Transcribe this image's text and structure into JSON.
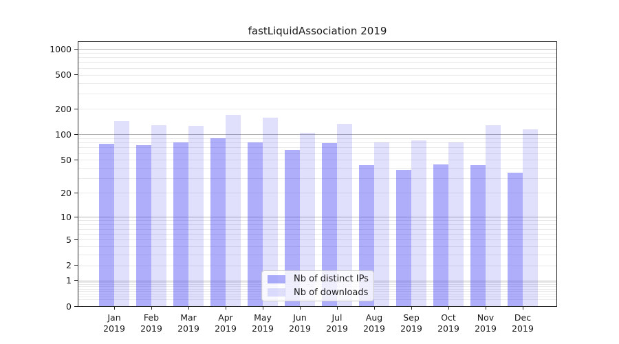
{
  "figure": {
    "title": "fastLiquidAssociation 2019"
  },
  "chart_data": {
    "type": "bar",
    "title": "fastLiquidAssociation 2019",
    "categories": [
      "Jan",
      "Feb",
      "Mar",
      "Apr",
      "May",
      "Jun",
      "Jul",
      "Aug",
      "Sep",
      "Oct",
      "Nov",
      "Dec"
    ],
    "category_year": "2019",
    "series": [
      {
        "name": "Nb of distinct IPs",
        "color": "rgba(62,62,244,0.42)",
        "values": [
          77,
          74,
          80,
          90,
          81,
          66,
          79,
          43,
          38,
          44,
          43,
          35
        ]
      },
      {
        "name": "Nb of downloads",
        "color": "rgba(62,62,244,0.16)",
        "values": [
          143,
          129,
          125,
          171,
          158,
          105,
          134,
          81,
          85,
          81,
          128,
          115
        ]
      }
    ],
    "xlabel": "",
    "ylabel": "",
    "y_axis": {
      "scale": "log10(1+x)",
      "range": [
        0,
        1250
      ],
      "tick_labels": [
        0,
        1,
        2,
        5,
        10,
        20,
        50,
        100,
        200,
        500,
        1000
      ],
      "major_gridlines": [
        1,
        10,
        100,
        1000
      ],
      "minor_gridlines": [
        0.2,
        0.3,
        0.4,
        0.5,
        0.6,
        0.7,
        0.8,
        0.9,
        2,
        3,
        4,
        5,
        6,
        7,
        8,
        9,
        20,
        30,
        40,
        50,
        60,
        70,
        80,
        90,
        200,
        300,
        400,
        500,
        600,
        700,
        800,
        900
      ]
    },
    "grid": "on",
    "legend_position": "lower center"
  },
  "colors": {
    "background": "#ffffff",
    "spine": "#262626",
    "major_grid": "#b2b2b2",
    "minor_grid": "#e9e9e9",
    "text": "#1a1a1a",
    "bar_distinct_ips": "rgba(62,62,244,0.42)",
    "bar_downloads": "rgba(62,62,244,0.16)"
  }
}
